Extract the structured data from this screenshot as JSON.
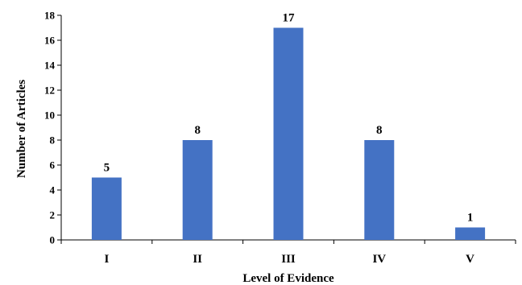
{
  "chart_data": {
    "type": "bar",
    "title": "",
    "xlabel": "Level of Evidence",
    "ylabel": "Number of Articles",
    "categories": [
      "I",
      "II",
      "III",
      "IV",
      "V"
    ],
    "values": [
      5,
      8,
      17,
      8,
      1
    ],
    "data_labels": [
      "5",
      "8",
      "17",
      "8",
      "1"
    ],
    "ylim": [
      0,
      18
    ],
    "y_ticks": [
      0,
      2,
      4,
      6,
      8,
      10,
      12,
      14,
      16,
      18
    ],
    "grid": false,
    "legend": "none",
    "bar_color": "#4472C4"
  }
}
